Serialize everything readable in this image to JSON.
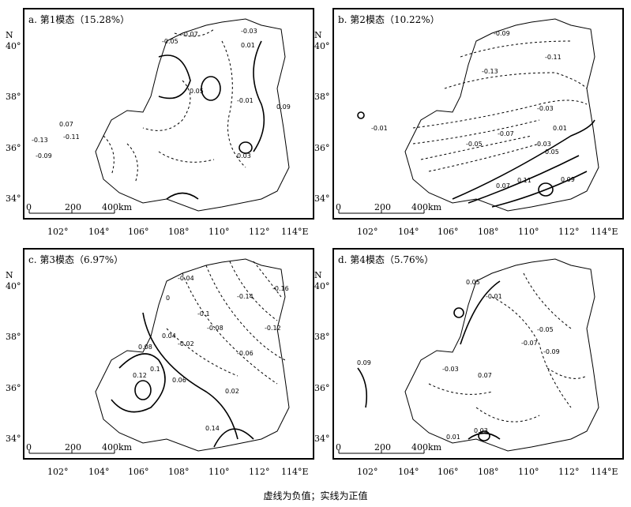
{
  "panels": [
    {
      "title": "a. 第1模态（15.28%）",
      "labels": [
        "-0.07",
        "-0.05",
        "-0.03",
        "-0.01",
        "0.01",
        "0.03",
        "0.05",
        "-0.09",
        "-0.13",
        "-0.11",
        "0.07",
        "0.09"
      ]
    },
    {
      "title": "b. 第2模态（10.22%）",
      "labels": [
        "-0.09",
        "-0.11",
        "-0.13",
        "-0.01",
        "-0.03",
        "-0.05",
        "-0.07",
        "0.01",
        "0.03",
        "0.05",
        "0.07",
        "0.09",
        "0.11"
      ]
    },
    {
      "title": "c. 第3模态（6.97%）",
      "labels": [
        "-0.04",
        "-0.02",
        "-0.14",
        "-0.16",
        "-0.12",
        "-0.1",
        "-0.08",
        "-0.06",
        "0",
        "0.02",
        "0.04",
        "0.06",
        "0.08",
        "0.1",
        "0.12",
        "0.14"
      ]
    },
    {
      "title": "d. 第4模态（5.76%）",
      "labels": [
        "0.05",
        "0.03",
        "0.01",
        "-0.01",
        "-0.03",
        "-0.05",
        "-0.07",
        "0.07",
        "0.09",
        "-0.09"
      ]
    }
  ],
  "axes": {
    "north": "N",
    "lat_labels": [
      "40°",
      "38°",
      "36°",
      "34°"
    ],
    "lon_labels": [
      "102°",
      "104°",
      "106°",
      "108°",
      "110°",
      "112°",
      "114°E"
    ],
    "scale": [
      "0",
      "200",
      "400km"
    ]
  },
  "caption": "虚线为负值；实线为正值"
}
